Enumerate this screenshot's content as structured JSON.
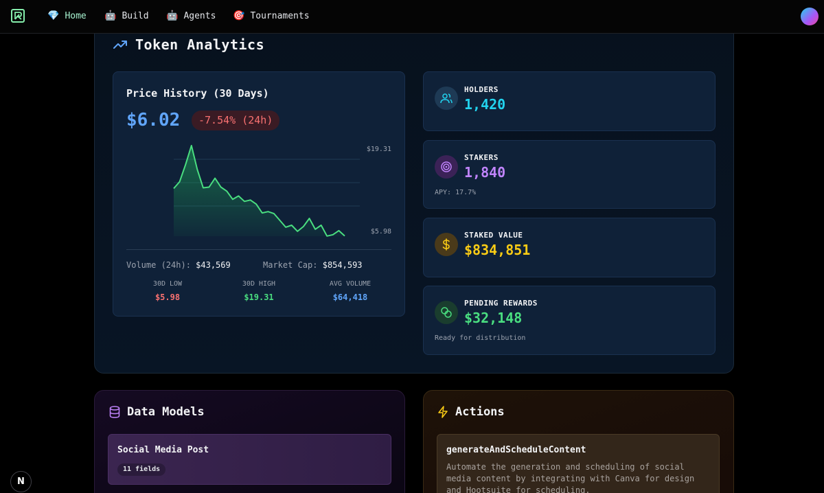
{
  "nav": {
    "items": [
      {
        "emoji": "💎",
        "label": "Home"
      },
      {
        "emoji": "🤖",
        "label": "Build"
      },
      {
        "emoji": "🤖",
        "label": "Agents"
      },
      {
        "emoji": "🎯",
        "label": "Tournaments"
      }
    ]
  },
  "token_analytics": {
    "title": "Token Analytics",
    "price_history": {
      "title": "Price History (30 Days)",
      "price": "$6.02",
      "change": "-7.54% (24h)",
      "volume_label": "Volume (24h):",
      "volume_value": "$43,569",
      "market_cap_label": "Market Cap:",
      "market_cap_value": "$854,593",
      "stats": [
        {
          "label": "30D LOW",
          "value": "$5.98",
          "color": "#f87171"
        },
        {
          "label": "30D HIGH",
          "value": "$19.31",
          "color": "#4ade80"
        },
        {
          "label": "AVG VOLUME",
          "value": "$64,418",
          "color": "#60a5fa"
        }
      ]
    },
    "cards": {
      "holders": {
        "label": "HOLDERS",
        "value": "1,420",
        "color": "#22d3ee"
      },
      "stakers": {
        "label": "STAKERS",
        "value": "1,840",
        "sub": "APY: 17.7%",
        "color": "#c084fc"
      },
      "staked_value": {
        "label": "STAKED VALUE",
        "value": "$834,851",
        "color": "#facc15"
      },
      "pending_rewards": {
        "label": "PENDING REWARDS",
        "value": "$32,148",
        "sub": "Ready for distribution",
        "color": "#4ade80"
      }
    }
  },
  "chart_data": {
    "type": "area",
    "x": [
      1,
      2,
      3,
      4,
      5,
      6,
      7,
      8,
      9,
      10,
      11,
      12,
      13,
      14,
      15,
      16,
      17,
      18,
      19,
      20,
      21,
      22,
      23,
      24,
      25,
      26,
      27,
      28,
      29,
      30
    ],
    "values": [
      13.0,
      14.0,
      16.5,
      19.31,
      15.8,
      13.1,
      13.2,
      14.5,
      13.2,
      12.6,
      11.4,
      11.9,
      11.1,
      11.3,
      10.7,
      9.4,
      9.6,
      9.3,
      8.3,
      7.3,
      7.6,
      6.7,
      7.4,
      8.6,
      7.0,
      7.6,
      6.0,
      6.2,
      6.8,
      6.02
    ],
    "ytick_labels": [
      "$19.31",
      "$5.98"
    ],
    "ylim": [
      5.98,
      19.31
    ],
    "line_color": "#4ade80",
    "grid": true
  },
  "data_models": {
    "title": "Data Models",
    "items": [
      {
        "title": "Social Media Post",
        "badge": "11 fields"
      }
    ]
  },
  "actions": {
    "title": "Actions",
    "items": [
      {
        "title": "generateAndScheduleContent",
        "description": "Automate the generation and scheduling of social media content by integrating with Canva for design and Hootsuite for scheduling."
      }
    ]
  },
  "floating_badge": "N"
}
